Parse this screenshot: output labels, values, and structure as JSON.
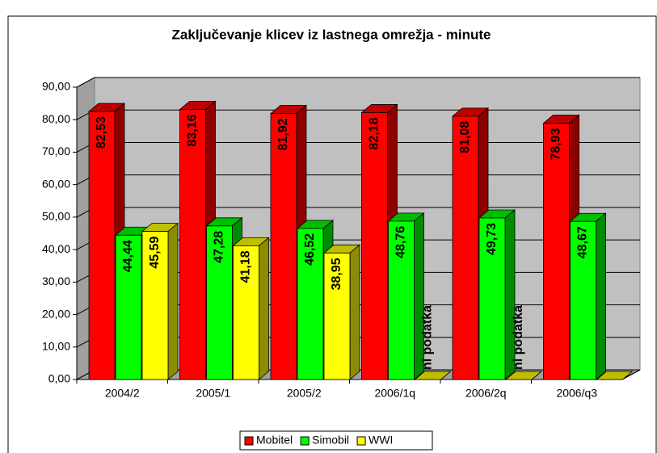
{
  "chart_data": {
    "type": "bar3d",
    "title": "Zaključevanje klicev iz lastnega omrežja - minute",
    "categories": [
      "2004/2",
      "2005/1",
      "2005/2",
      "2006/1q",
      "2006/2q",
      "2006/q3"
    ],
    "series": [
      {
        "name": "Mobitel",
        "color": "#ff0000",
        "values": [
          82.53,
          83.16,
          81.92,
          82.18,
          81.08,
          78.93
        ],
        "value_labels": [
          "82,53",
          "83,16",
          "81,92",
          "82,18",
          "81,08",
          "78,93"
        ]
      },
      {
        "name": "Simobil",
        "color": "#00ff00",
        "values": [
          44.44,
          47.28,
          46.52,
          48.76,
          49.73,
          48.67
        ],
        "value_labels": [
          "44,44",
          "47,28",
          "46,52",
          "48,76",
          "49,73",
          "48,67"
        ]
      },
      {
        "name": "WWI",
        "color": "#ffff00",
        "values": [
          45.59,
          41.18,
          38.95,
          null,
          null,
          null
        ],
        "value_labels": [
          "45,59",
          "41,18",
          "38,95",
          "ni podatka",
          "ni podatka",
          null
        ]
      }
    ],
    "ylim": [
      0,
      90
    ],
    "yticks": [
      {
        "value": 0,
        "label": "0,00"
      },
      {
        "value": 10,
        "label": "10,00"
      },
      {
        "value": 20,
        "label": "20,00"
      },
      {
        "value": 30,
        "label": "30,00"
      },
      {
        "value": 40,
        "label": "40,00"
      },
      {
        "value": 50,
        "label": "50,00"
      },
      {
        "value": 60,
        "label": "60,00"
      },
      {
        "value": 70,
        "label": "70,00"
      },
      {
        "value": 80,
        "label": "80,00"
      },
      {
        "value": 90,
        "label": "90,00"
      }
    ],
    "grid": true
  }
}
